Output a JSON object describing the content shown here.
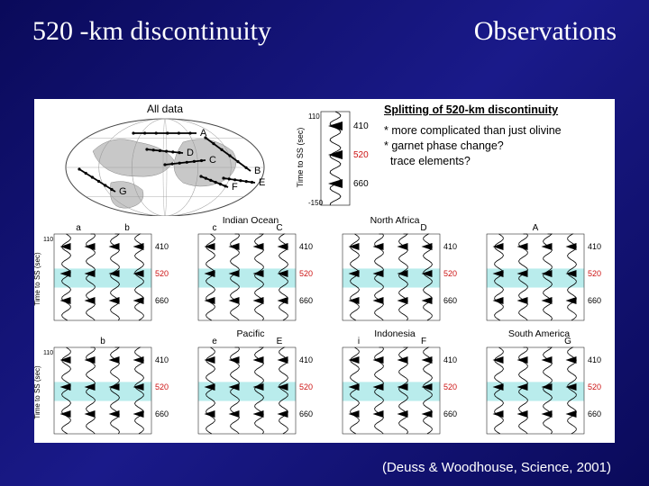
{
  "header": {
    "left_title": "520 -km discontinuity",
    "right_title": "Observations"
  },
  "globe": {
    "title": "All data",
    "segments": [
      "A",
      "B",
      "G",
      "C",
      "D",
      "E",
      "F"
    ],
    "ellipse_rx": 110,
    "ellipse_ry": 54,
    "land_color": "#c8c8c8",
    "ocean_color": "#ffffff",
    "outline_color": "#444444",
    "path_color": "#000000"
  },
  "top_chart": {
    "ylabel": "Time to SS (sec)",
    "yticks": [
      110,
      -150
    ],
    "depths": [
      410,
      520,
      660
    ],
    "depth_colors": {
      "410": "#000000",
      "520": "#cc1111",
      "660": "#000000"
    },
    "triangle_color": "#000000"
  },
  "text_overlay": {
    "subtitle": "Splitting of 520-km discontinuity",
    "bullets": [
      "* more complicated than just olivine",
      "* garnet phase change?",
      "  trace elements?"
    ]
  },
  "panels": [
    {
      "id": "a",
      "title": "",
      "segments": [
        "a",
        "b"
      ],
      "region": ""
    },
    {
      "id": "c",
      "title": "Indian Ocean",
      "segments": [
        "c",
        "",
        "C"
      ],
      "region": "Indian Ocean"
    },
    {
      "id": "d",
      "title": "North Africa",
      "segments": [
        "",
        "",
        "D"
      ],
      "region": "North Africa"
    },
    {
      "id": "A",
      "title": "",
      "segments": [
        "A"
      ],
      "region": ""
    },
    {
      "id": "b",
      "title": "",
      "segments": [
        "b"
      ],
      "region": ""
    },
    {
      "id": "e",
      "title": "Pacific",
      "segments": [
        "e",
        "",
        "E"
      ],
      "region": "Pacific"
    },
    {
      "id": "f",
      "title": "Indonesia",
      "segments": [
        "i",
        "",
        "F"
      ],
      "region": "Indonesia"
    },
    {
      "id": "g",
      "title": "South America",
      "segments": [
        "",
        "",
        "G"
      ],
      "region": "South America"
    }
  ],
  "panel_style": {
    "depths": [
      410,
      520,
      660
    ],
    "depth_colors": {
      "410": "#000000",
      "520": "#cc1111",
      "660": "#000000"
    },
    "highlight_color": "#b9ecec",
    "wave_color": "#000000",
    "triangle_color": "#000000",
    "ylabel": "Time to SS (sec)",
    "yticks": [
      110,
      "-150"
    ],
    "n_traces": 4
  },
  "citation": "(Deuss & Woodhouse, Science, 2001)",
  "colors": {
    "slide_bg_start": "#0a0a5a",
    "slide_bg_end": "#1a1a8a",
    "figure_bg": "#ffffff",
    "text": "#000000",
    "title_text": "#ffffff"
  },
  "typography": {
    "title_fontsize": 30,
    "title_family": "Times New Roman",
    "body_fontsize": 12.5,
    "label_fontsize": 10
  }
}
